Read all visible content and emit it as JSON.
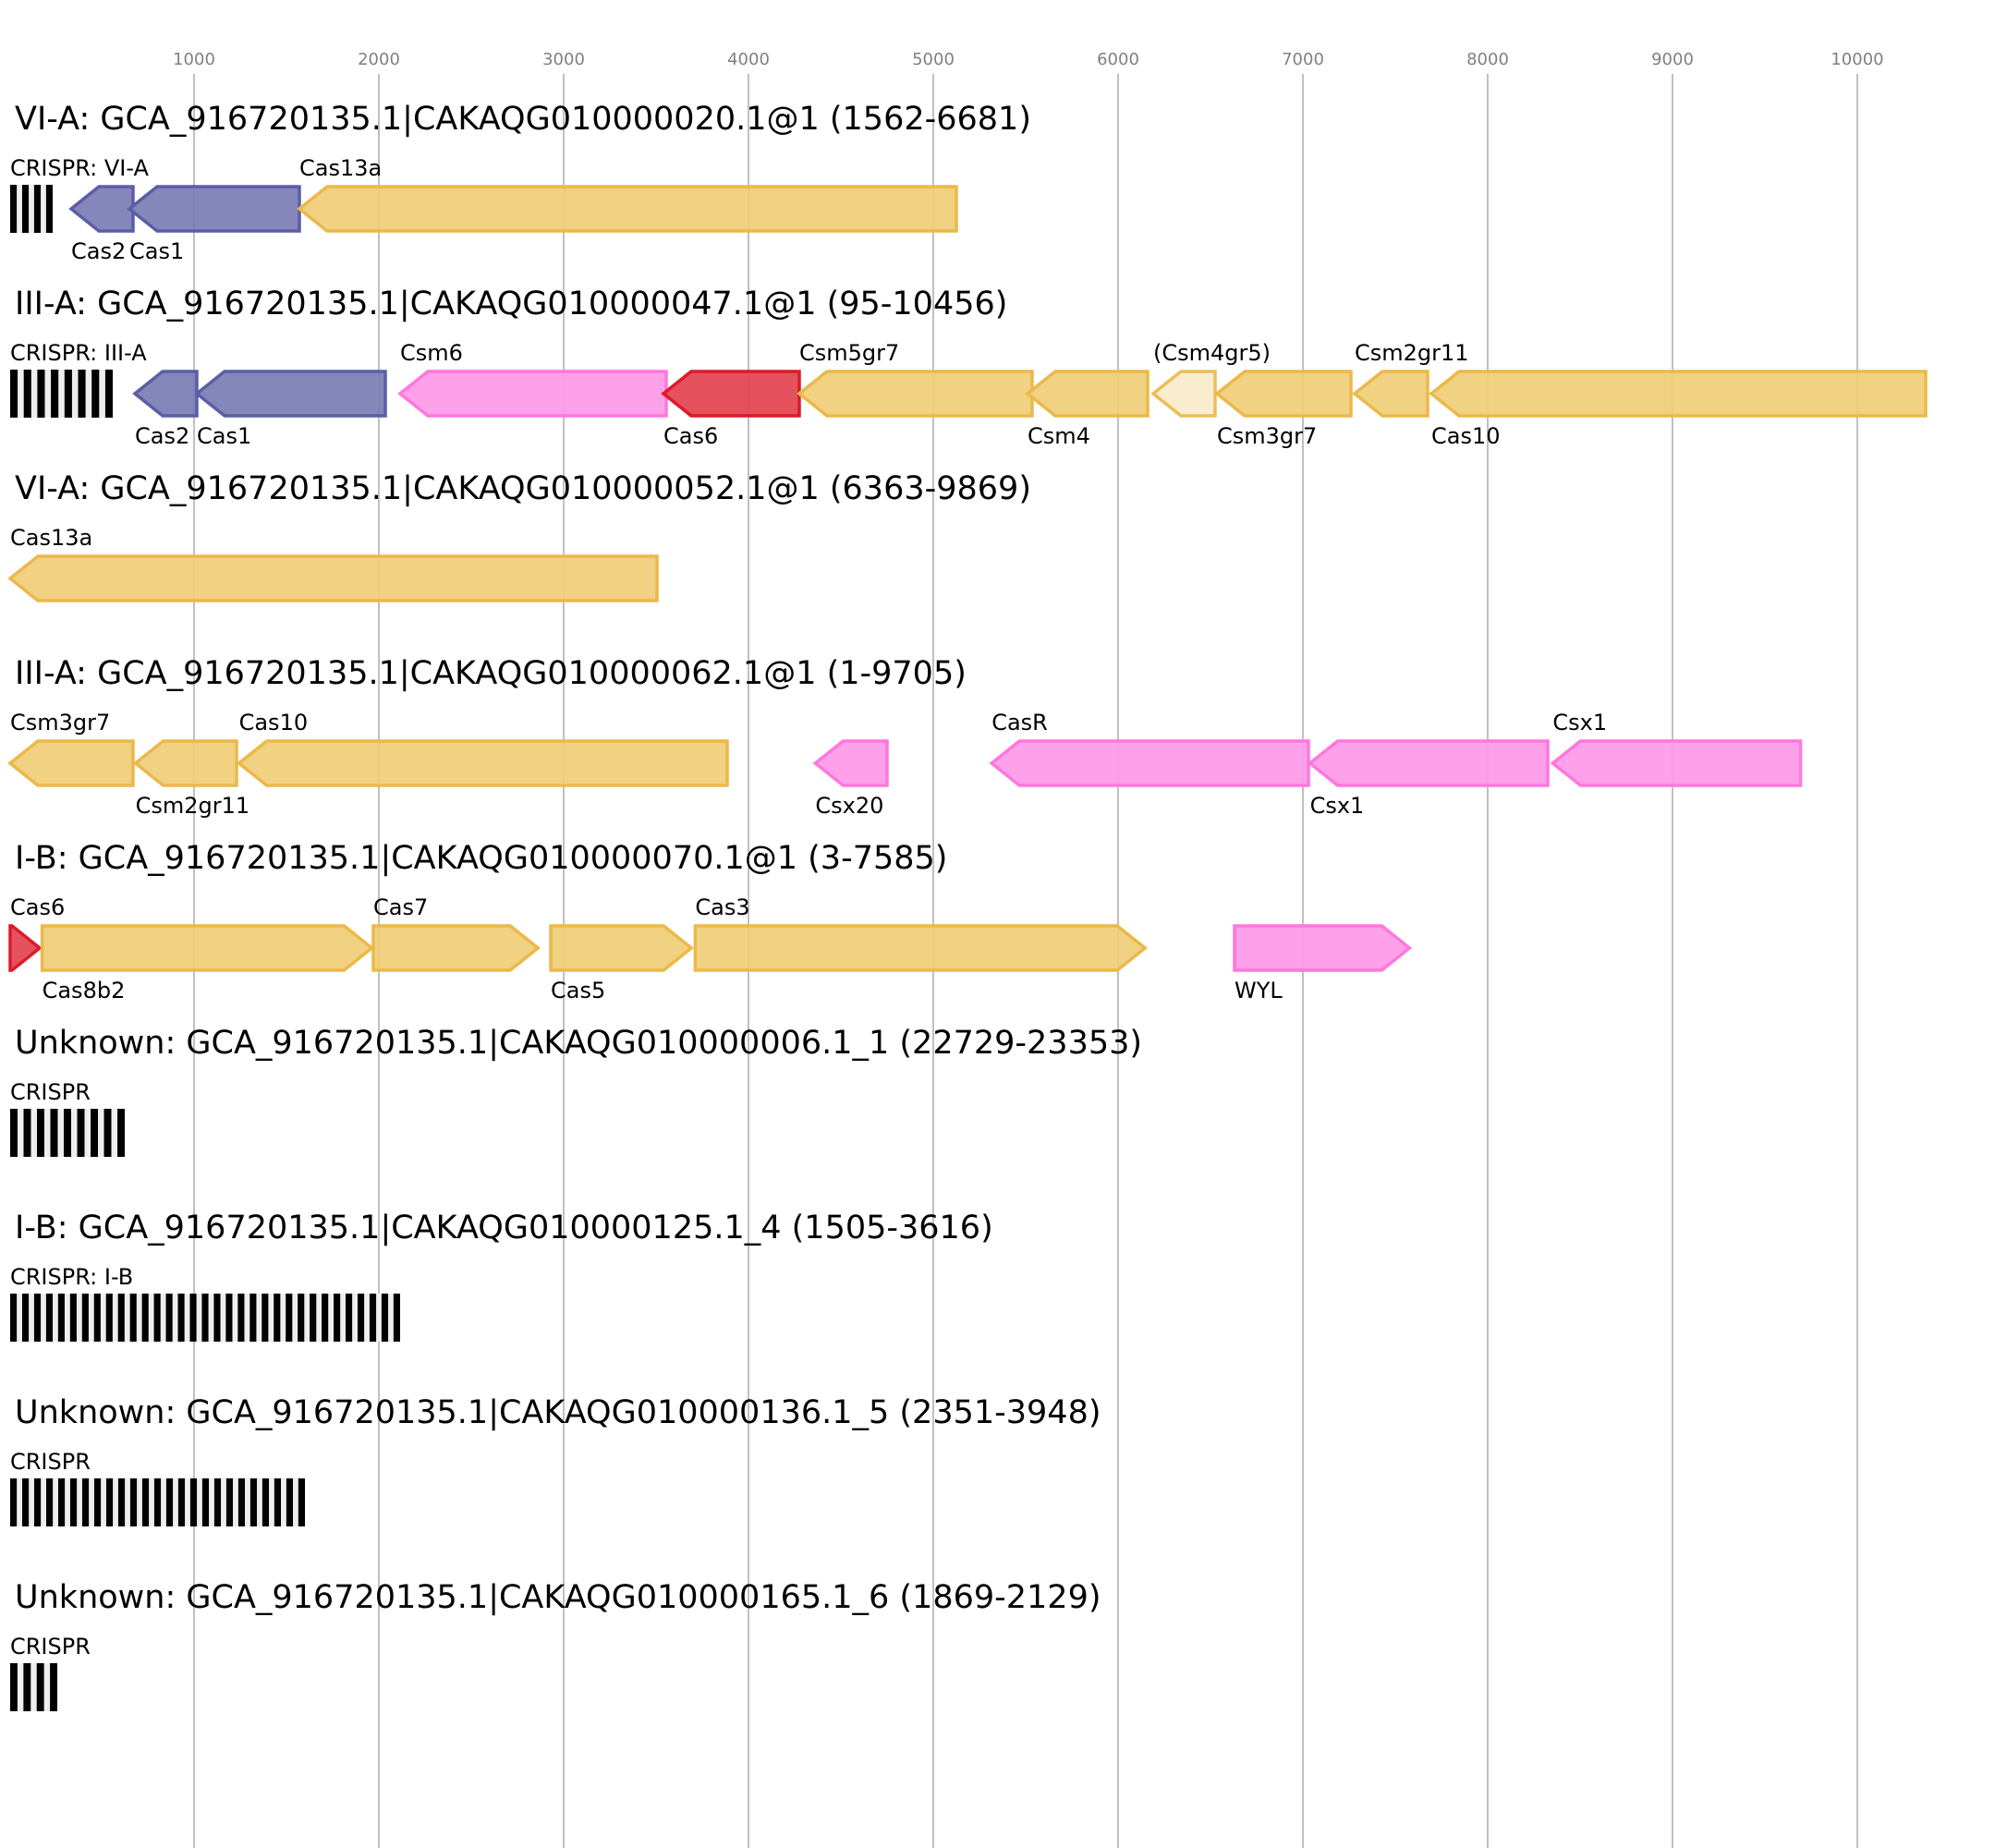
{
  "axis": {
    "ticks": [
      1000,
      2000,
      3000,
      4000,
      5000,
      6000,
      7000,
      8000,
      9000,
      10000
    ]
  },
  "colors": {
    "adaptation": {
      "fill": "#7b7db5",
      "stroke": "#5b5ea6"
    },
    "effector": {
      "fill": "#f0cd77",
      "stroke": "#ebb94a"
    },
    "accessory": {
      "fill": "#ff99e8",
      "stroke": "#ff77dd"
    },
    "processing": {
      "fill": "#e3434f",
      "stroke": "#dc1b2a"
    },
    "partial": {
      "fill": "#faebcb",
      "stroke": "#ebbe55"
    }
  },
  "tracks": [
    {
      "title": "VI-A: GCA_916720135.1|CAKAQG010000020.1@1 (1562-6681)",
      "crispr": {
        "label": "CRISPR: VI-A",
        "start": 5,
        "end": 235,
        "repeats": 4
      },
      "genes": [
        {
          "name": "Cas2",
          "start": 335,
          "end": 670,
          "strand": "-",
          "type": "adaptation",
          "label_pos": "above"
        },
        {
          "name": "Cas1",
          "start": 650,
          "end": 1570,
          "strand": "-",
          "type": "adaptation",
          "label_pos": "below"
        },
        {
          "name": "Cas13a",
          "start": 1570,
          "end": 5125,
          "strand": "-",
          "type": "effector",
          "label_pos": "above"
        }
      ]
    },
    {
      "title": "III-A: GCA_916720135.1|CAKAQG010000047.1@1 (95-10456)",
      "crispr": {
        "label": "CRISPR: III-A",
        "start": 5,
        "end": 560,
        "repeats": 8
      },
      "genes": [
        {
          "name": "Cas2",
          "start": 680,
          "end": 1015,
          "strand": "-",
          "type": "adaptation",
          "label_pos": "above"
        },
        {
          "name": "Cas1",
          "start": 1015,
          "end": 2035,
          "strand": "-",
          "type": "adaptation",
          "label_pos": "below"
        },
        {
          "name": "Csm6",
          "start": 2115,
          "end": 3555,
          "strand": "-",
          "type": "accessory",
          "label_pos": "above"
        },
        {
          "name": "Cas6",
          "start": 3540,
          "end": 4275,
          "strand": "-",
          "type": "processing",
          "label_pos": "below"
        },
        {
          "name": "Csm5gr7",
          "start": 4275,
          "end": 5535,
          "strand": "-",
          "type": "effector",
          "label_pos": "above"
        },
        {
          "name": "Csm4",
          "start": 5510,
          "end": 6160,
          "strand": "-",
          "type": "effector",
          "label_pos": "below"
        },
        {
          "name": "(Csm4gr5)",
          "start": 6190,
          "end": 6525,
          "strand": "-",
          "type": "partial",
          "label_pos": "above"
        },
        {
          "name": "Csm3gr7",
          "start": 6535,
          "end": 7260,
          "strand": "-",
          "type": "effector",
          "label_pos": "below"
        },
        {
          "name": "Csm2gr11",
          "start": 7280,
          "end": 7675,
          "strand": "-",
          "type": "effector",
          "label_pos": "above"
        },
        {
          "name": "Cas10",
          "start": 7695,
          "end": 10370,
          "strand": "-",
          "type": "effector",
          "label_pos": "below"
        }
      ]
    },
    {
      "title": "VI-A: GCA_916720135.1|CAKAQG010000052.1@1 (6363-9869)",
      "genes": [
        {
          "name": "Cas13a",
          "start": 5,
          "end": 3505,
          "strand": "-",
          "type": "effector",
          "label_pos": "above"
        }
      ]
    },
    {
      "title": "III-A: GCA_916720135.1|CAKAQG010000062.1@1 (1-9705)",
      "genes": [
        {
          "name": "Csm3gr7",
          "start": 5,
          "end": 670,
          "strand": "-",
          "type": "effector",
          "label_pos": "above"
        },
        {
          "name": "Csm2gr11",
          "start": 683,
          "end": 1230,
          "strand": "-",
          "type": "effector",
          "label_pos": "below"
        },
        {
          "name": "Cas10",
          "start": 1243,
          "end": 3885,
          "strand": "-",
          "type": "effector",
          "label_pos": "above"
        },
        {
          "name": "Csx20",
          "start": 4362,
          "end": 4750,
          "strand": "-",
          "type": "accessory",
          "label_pos": "below"
        },
        {
          "name": "CasR",
          "start": 5316,
          "end": 7030,
          "strand": "-",
          "type": "accessory",
          "label_pos": "above"
        },
        {
          "name": "Csx1",
          "start": 7038,
          "end": 8325,
          "strand": "-",
          "type": "accessory",
          "label_pos": "below"
        },
        {
          "name": "Csx1",
          "start": 8352,
          "end": 9693,
          "strand": "-",
          "type": "accessory",
          "label_pos": "above"
        }
      ]
    },
    {
      "title": "I-B: GCA_916720135.1|CAKAQG010000070.1@1 (3-7585)",
      "genes": [
        {
          "name": "Cas6",
          "start": 5,
          "end": 165,
          "strand": "+",
          "type": "processing",
          "label_pos": "above"
        },
        {
          "name": "Cas8b2",
          "start": 178,
          "end": 1962,
          "strand": "+",
          "type": "effector",
          "label_pos": "below"
        },
        {
          "name": "Cas7",
          "start": 1970,
          "end": 2861,
          "strand": "+",
          "type": "effector",
          "label_pos": "above"
        },
        {
          "name": "Cas5",
          "start": 2930,
          "end": 3691,
          "strand": "+",
          "type": "effector",
          "label_pos": "below"
        },
        {
          "name": "Cas3",
          "start": 3712,
          "end": 6146,
          "strand": "+",
          "type": "effector",
          "label_pos": "above"
        },
        {
          "name": "WYL",
          "start": 6630,
          "end": 7577,
          "strand": "+",
          "type": "accessory",
          "label_pos": "below"
        }
      ]
    },
    {
      "title": "Unknown: GCA_916720135.1|CAKAQG010000006.1_1 (22729-23353)",
      "crispr": {
        "label": "CRISPR",
        "start": 5,
        "end": 625,
        "repeats": 9
      },
      "genes": []
    },
    {
      "title": "I-B: GCA_916720135.1|CAKAQG010000125.1_4 (1505-3616)",
      "crispr": {
        "label": "CRISPR: I-B",
        "start": 5,
        "end": 2115,
        "repeats": 33
      },
      "genes": []
    },
    {
      "title": "Unknown: GCA_916720135.1|CAKAQG010000136.1_5 (2351-3948)",
      "crispr": {
        "label": "CRISPR",
        "start": 5,
        "end": 1600,
        "repeats": 25
      },
      "genes": []
    },
    {
      "title": "Unknown: GCA_916720135.1|CAKAQG010000165.1_6 (1869-2129)",
      "crispr": {
        "label": "CRISPR",
        "start": 5,
        "end": 260,
        "repeats": 4
      },
      "genes": []
    }
  ]
}
